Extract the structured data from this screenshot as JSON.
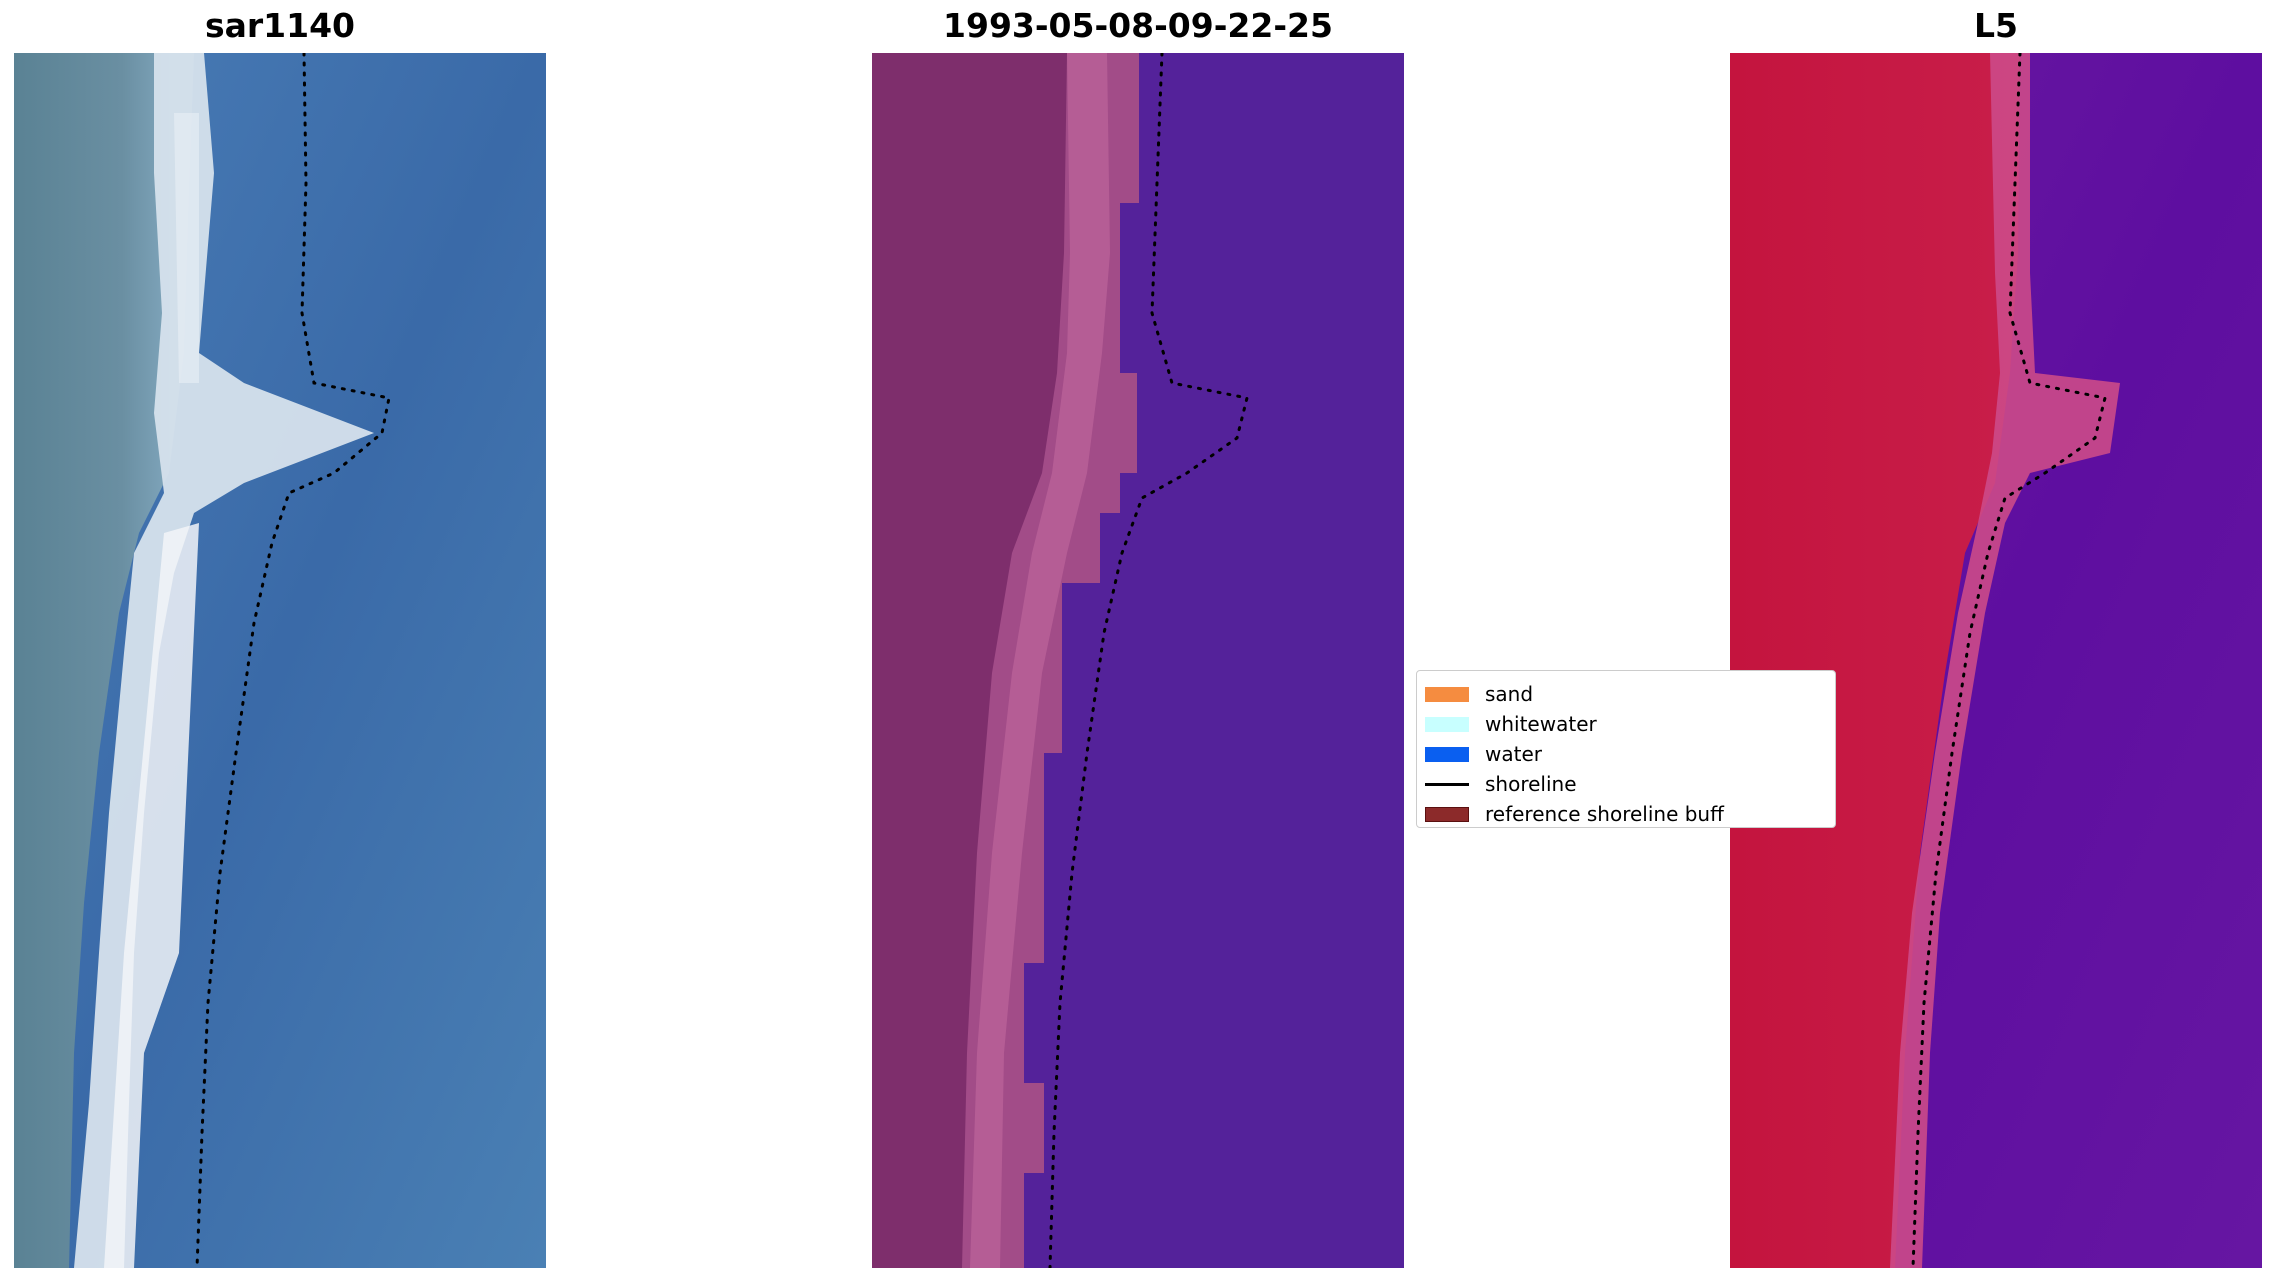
{
  "panels": [
    {
      "id": "left",
      "title": "sar1140",
      "image": "rgb-satellite"
    },
    {
      "id": "middle",
      "title": "1993-05-08-09-22-25",
      "image": "classified"
    },
    {
      "id": "right",
      "title": "L5",
      "image": "index-map"
    }
  ],
  "legend": {
    "items": [
      {
        "label": "sand",
        "color": "#f58c40",
        "kind": "patch"
      },
      {
        "label": "whitewater",
        "color": "#c8ffff",
        "kind": "patch"
      },
      {
        "label": "water",
        "color": "#0a5ff0",
        "kind": "patch"
      },
      {
        "label": "shoreline",
        "color": "#000000",
        "kind": "line"
      },
      {
        "label": "reference shoreline buff",
        "color": "#8c2a2a",
        "kind": "patch"
      }
    ]
  },
  "colors": {
    "left_land": "#5c8a9c",
    "left_beach": "#d8e4ee",
    "left_water": "#3a6ca8",
    "mid_land": "#7a2e6a",
    "mid_beach": "#b05a96",
    "mid_water": "#54229a",
    "right_land": "#c21642",
    "right_beach": "#d04a86",
    "right_water": "#62129e",
    "shoreline": "#000000"
  }
}
